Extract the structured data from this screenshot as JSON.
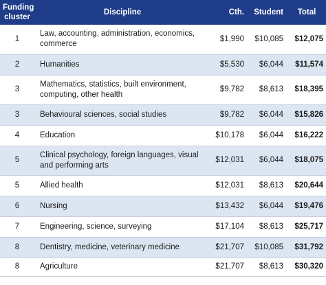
{
  "header": {
    "cluster": "Funding cluster",
    "discipline": "Discipline",
    "cth": "Cth.",
    "student": "Student",
    "total": "Total"
  },
  "rows": [
    {
      "cluster": "1",
      "discipline": "Law, accounting, administration, economics, commerce",
      "cth": "$1,990",
      "student": "$10,085",
      "total": "$12,075"
    },
    {
      "cluster": "2",
      "discipline": "Humanities",
      "cth": "$5,530",
      "student": "$6,044",
      "total": "$11,574"
    },
    {
      "cluster": "3",
      "discipline": "Mathematics, statistics, built environment, computing, other health",
      "cth": "$9,782",
      "student": "$8,613",
      "total": "$18,395"
    },
    {
      "cluster": "3",
      "discipline": "Behavioural sciences, social studies",
      "cth": "$9,782",
      "student": "$6,044",
      "total": "$15,826"
    },
    {
      "cluster": "4",
      "discipline": "Education",
      "cth": "$10,178",
      "student": "$6,044",
      "total": "$16,222"
    },
    {
      "cluster": "5",
      "discipline": "Clinical psychology, foreign languages, visual and performing arts",
      "cth": "$12,031",
      "student": "$6,044",
      "total": "$18,075"
    },
    {
      "cluster": "5",
      "discipline": "Allied health",
      "cth": "$12,031",
      "student": "$8,613",
      "total": "$20,644"
    },
    {
      "cluster": "6",
      "discipline": "Nursing",
      "cth": "$13,432",
      "student": "$6,044",
      "total": "$19,476"
    },
    {
      "cluster": "7",
      "discipline": "Engineering, science, surveying",
      "cth": "$17,104",
      "student": "$8,613",
      "total": "$25,717"
    },
    {
      "cluster": "8",
      "discipline": "Dentistry, medicine, veterinary medicine",
      "cth": "$21,707",
      "student": "$10,085",
      "total": "$31,792"
    },
    {
      "cluster": "8",
      "discipline": "Agriculture",
      "cth": "$21,707",
      "student": "$8,613",
      "total": "$30,320"
    }
  ],
  "colors": {
    "header_bg": "#1f3c88",
    "header_text": "#ffffff",
    "stripe": "#dce6f2"
  }
}
